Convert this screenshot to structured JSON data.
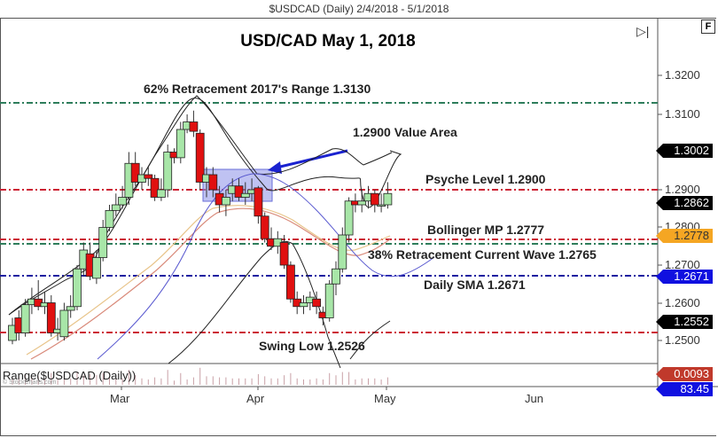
{
  "window": {
    "title": "$USDCAD (Daily)  2/4/2018 - 5/1/2018"
  },
  "chart_title": "USD/CAD May 1, 2018",
  "controls": {
    "play_end": "▷|",
    "f_button": "F"
  },
  "annotations": {
    "fib62": "62% Retracement 2017's Range 1.3130",
    "value_area": "1.2900 Value Area",
    "psyche": "Psyche Level 1.2900",
    "bollinger_mp": "Bollinger MP 1.2777",
    "fib38": "38% Retracement Current Wave 1.2765",
    "daily_sma": "Daily SMA 1.2671",
    "swing_low": "Swing Low 1.2526"
  },
  "y_axis": {
    "ticks": [
      "1.3200",
      "1.3100",
      "1.2900",
      "1.2800",
      "1.2700",
      "1.2600",
      "1.2500"
    ]
  },
  "price_tags": [
    {
      "value": "1.3002",
      "color": "#000000",
      "text_color": "#ffffff"
    },
    {
      "value": "1.2862",
      "color": "#000000",
      "text_color": "#ffffff"
    },
    {
      "value": "1.2778",
      "color": "#f5a623",
      "text_color": "#333333"
    },
    {
      "value": "1.2671",
      "color": "#1010e0",
      "text_color": "#ffffff"
    },
    {
      "value": "1.2552",
      "color": "#000000",
      "text_color": "#ffffff"
    },
    {
      "value": "0.0093",
      "color": "#c0392b",
      "text_color": "#ffffff"
    },
    {
      "value": "83.45",
      "color": "#1010e0",
      "text_color": "#ffffff"
    }
  ],
  "x_axis": {
    "labels": [
      "Mar",
      "Apr",
      "May",
      "Jun"
    ]
  },
  "indicator": {
    "label": "Range($USDCAD (Daily))",
    "copyright": "© StockCharts.com"
  },
  "chart_data": {
    "type": "candlestick",
    "title": "USD/CAD May 1, 2018",
    "subtitle": "$USDCAD (Daily) 2/4/2018 - 5/1/2018",
    "xlabel": "",
    "ylabel": "",
    "ylim": [
      1.245,
      1.327
    ],
    "x_ticks": [
      "Mar",
      "Apr",
      "May",
      "Jun"
    ],
    "y_ticks": [
      1.25,
      1.26,
      1.27,
      1.28,
      1.29,
      1.31,
      1.32
    ],
    "horizontal_lines": [
      {
        "label": "62% Retracement 2017's Range",
        "value": 1.313,
        "color": "#2e7d5b",
        "style": "dash-dot"
      },
      {
        "label": "Psyche Level",
        "value": 1.29,
        "color": "#cc2233",
        "style": "dash-dot"
      },
      {
        "label": "Bollinger MP",
        "value": 1.2777,
        "color": "#cc2233",
        "style": "dash-dot"
      },
      {
        "label": "38% Retracement Current Wave",
        "value": 1.2765,
        "color": "#2e7d5b",
        "style": "dash-dot"
      },
      {
        "label": "Daily SMA",
        "value": 1.2671,
        "color": "#1a1aa0",
        "style": "dash-dot"
      },
      {
        "label": "Swing Low",
        "value": 1.2526,
        "color": "#cc2233",
        "style": "dash-dot"
      }
    ],
    "last_values": {
      "close": 1.2862,
      "upper_band": 1.3002,
      "middle_band": 1.2778,
      "sma": 1.2671,
      "lower_band": 1.2552,
      "range": 0.0093,
      "indicator": 83.45
    },
    "annotation_box": {
      "label": "1.2900 Value Area",
      "y_range": [
        1.287,
        1.295
      ]
    },
    "candles_approx": [
      {
        "o": 1.25,
        "c": 1.254,
        "h": 1.256,
        "l": 1.249
      },
      {
        "o": 1.256,
        "c": 1.252,
        "h": 1.258,
        "l": 1.25
      },
      {
        "o": 1.252,
        "c": 1.2595,
        "h": 1.261,
        "l": 1.251
      },
      {
        "o": 1.2595,
        "c": 1.261,
        "h": 1.264,
        "l": 1.257
      },
      {
        "o": 1.261,
        "c": 1.259,
        "h": 1.266,
        "l": 1.258
      },
      {
        "o": 1.259,
        "c": 1.26,
        "h": 1.263,
        "l": 1.257
      },
      {
        "o": 1.26,
        "c": 1.252,
        "h": 1.262,
        "l": 1.251
      },
      {
        "o": 1.252,
        "c": 1.253,
        "h": 1.256,
        "l": 1.25
      },
      {
        "o": 1.251,
        "c": 1.258,
        "h": 1.26,
        "l": 1.25
      },
      {
        "o": 1.258,
        "c": 1.259,
        "h": 1.262,
        "l": 1.256
      },
      {
        "o": 1.259,
        "c": 1.269,
        "h": 1.27,
        "l": 1.258
      },
      {
        "o": 1.269,
        "c": 1.274,
        "h": 1.276,
        "l": 1.267
      },
      {
        "o": 1.273,
        "c": 1.267,
        "h": 1.276,
        "l": 1.266
      },
      {
        "o": 1.2665,
        "c": 1.272,
        "h": 1.274,
        "l": 1.265
      },
      {
        "o": 1.272,
        "c": 1.28,
        "h": 1.282,
        "l": 1.271
      },
      {
        "o": 1.28,
        "c": 1.2845,
        "h": 1.286,
        "l": 1.279
      },
      {
        "o": 1.2845,
        "c": 1.286,
        "h": 1.289,
        "l": 1.283
      },
      {
        "o": 1.286,
        "c": 1.288,
        "h": 1.291,
        "l": 1.285
      },
      {
        "o": 1.288,
        "c": 1.297,
        "h": 1.3,
        "l": 1.286
      },
      {
        "o": 1.297,
        "c": 1.292,
        "h": 1.3,
        "l": 1.291
      },
      {
        "o": 1.292,
        "c": 1.294,
        "h": 1.296,
        "l": 1.29
      },
      {
        "o": 1.294,
        "c": 1.293,
        "h": 1.296,
        "l": 1.291
      },
      {
        "o": 1.293,
        "c": 1.288,
        "h": 1.294,
        "l": 1.287
      },
      {
        "o": 1.288,
        "c": 1.29,
        "h": 1.293,
        "l": 1.287
      },
      {
        "o": 1.29,
        "c": 1.3,
        "h": 1.302,
        "l": 1.288
      },
      {
        "o": 1.3,
        "c": 1.2985,
        "h": 1.301,
        "l": 1.297
      },
      {
        "o": 1.2985,
        "c": 1.306,
        "h": 1.308,
        "l": 1.297
      },
      {
        "o": 1.306,
        "c": 1.308,
        "h": 1.31,
        "l": 1.305
      },
      {
        "o": 1.308,
        "c": 1.3055,
        "h": 1.311,
        "l": 1.304
      },
      {
        "o": 1.305,
        "c": 1.292,
        "h": 1.306,
        "l": 1.29
      },
      {
        "o": 1.292,
        "c": 1.294,
        "h": 1.296,
        "l": 1.288
      },
      {
        "o": 1.294,
        "c": 1.29,
        "h": 1.296,
        "l": 1.288
      },
      {
        "o": 1.289,
        "c": 1.286,
        "h": 1.291,
        "l": 1.284
      },
      {
        "o": 1.286,
        "c": 1.288,
        "h": 1.29,
        "l": 1.283
      },
      {
        "o": 1.289,
        "c": 1.291,
        "h": 1.293,
        "l": 1.287
      },
      {
        "o": 1.291,
        "c": 1.288,
        "h": 1.293,
        "l": 1.287
      },
      {
        "o": 1.288,
        "c": 1.289,
        "h": 1.292,
        "l": 1.286
      },
      {
        "o": 1.289,
        "c": 1.29,
        "h": 1.293,
        "l": 1.287
      },
      {
        "o": 1.2905,
        "c": 1.283,
        "h": 1.291,
        "l": 1.281
      },
      {
        "o": 1.283,
        "c": 1.277,
        "h": 1.284,
        "l": 1.276
      },
      {
        "o": 1.277,
        "c": 1.275,
        "h": 1.28,
        "l": 1.274
      },
      {
        "o": 1.275,
        "c": 1.277,
        "h": 1.279,
        "l": 1.273
      },
      {
        "o": 1.276,
        "c": 1.27,
        "h": 1.278,
        "l": 1.269
      },
      {
        "o": 1.27,
        "c": 1.261,
        "h": 1.271,
        "l": 1.26
      },
      {
        "o": 1.261,
        "c": 1.259,
        "h": 1.263,
        "l": 1.257
      },
      {
        "o": 1.259,
        "c": 1.26,
        "h": 1.262,
        "l": 1.257
      },
      {
        "o": 1.26,
        "c": 1.2615,
        "h": 1.263,
        "l": 1.258
      },
      {
        "o": 1.261,
        "c": 1.259,
        "h": 1.263,
        "l": 1.257
      },
      {
        "o": 1.2575,
        "c": 1.256,
        "h": 1.259,
        "l": 1.254
      },
      {
        "o": 1.256,
        "c": 1.265,
        "h": 1.266,
        "l": 1.255
      },
      {
        "o": 1.265,
        "c": 1.269,
        "h": 1.271,
        "l": 1.262
      },
      {
        "o": 1.269,
        "c": 1.278,
        "h": 1.28,
        "l": 1.268
      },
      {
        "o": 1.278,
        "c": 1.287,
        "h": 1.288,
        "l": 1.276
      },
      {
        "o": 1.287,
        "c": 1.286,
        "h": 1.289,
        "l": 1.284
      },
      {
        "o": 1.286,
        "c": 1.287,
        "h": 1.29,
        "l": 1.284
      },
      {
        "o": 1.287,
        "c": 1.289,
        "h": 1.291,
        "l": 1.285
      },
      {
        "o": 1.289,
        "c": 1.286,
        "h": 1.29,
        "l": 1.284
      },
      {
        "o": 1.286,
        "c": 1.286,
        "h": 1.289,
        "l": 1.284
      },
      {
        "o": 1.286,
        "c": 1.289,
        "h": 1.292,
        "l": 1.285
      }
    ]
  }
}
